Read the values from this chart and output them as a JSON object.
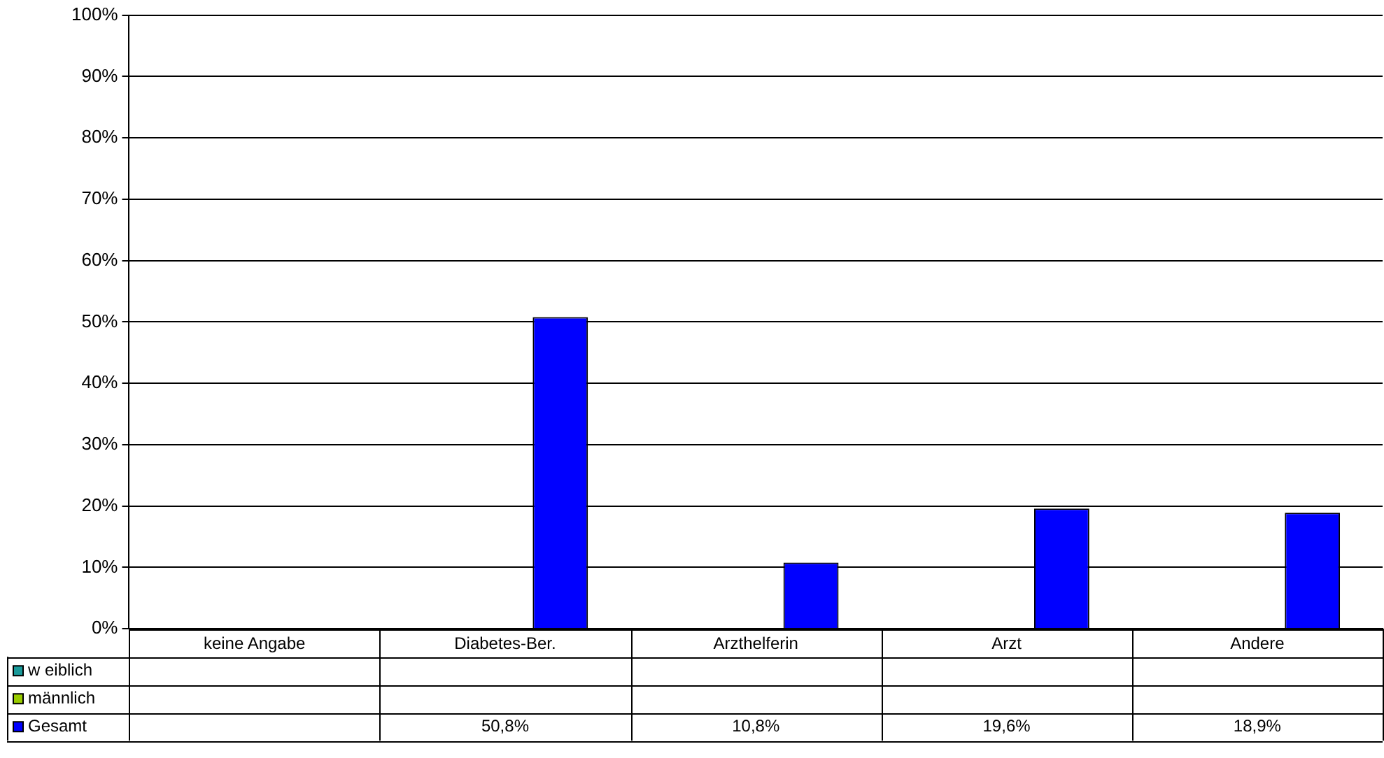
{
  "chart_data": {
    "type": "bar",
    "categories": [
      "keine Angabe",
      "Diabetes-Ber.",
      "Arzthelferin",
      "Arzt",
      "Andere"
    ],
    "series": [
      {
        "name": "w eiblich",
        "color": "#1a9a9a",
        "values": [
          null,
          null,
          null,
          null,
          null
        ]
      },
      {
        "name": "männlich",
        "color": "#99cc00",
        "values": [
          null,
          null,
          null,
          null,
          null
        ]
      },
      {
        "name": "Gesamt",
        "color": "#0000ff",
        "values": [
          null,
          50.8,
          10.8,
          19.6,
          18.9
        ],
        "value_labels": [
          null,
          "50,8%",
          "10,8%",
          "19,6%",
          "18,9%"
        ]
      }
    ],
    "ylim": [
      0,
      100
    ],
    "yticks": [
      {
        "value": 0,
        "label": "0%"
      },
      {
        "value": 10,
        "label": "10%"
      },
      {
        "value": 20,
        "label": "20%"
      },
      {
        "value": 30,
        "label": "30%"
      },
      {
        "value": 40,
        "label": "40%"
      },
      {
        "value": 50,
        "label": "50%"
      },
      {
        "value": 60,
        "label": "60%"
      },
      {
        "value": 70,
        "label": "70%"
      },
      {
        "value": 80,
        "label": "80%"
      },
      {
        "value": 90,
        "label": "90%"
      },
      {
        "value": 100,
        "label": "100%"
      }
    ],
    "grid": "y",
    "legend": "bottom"
  }
}
